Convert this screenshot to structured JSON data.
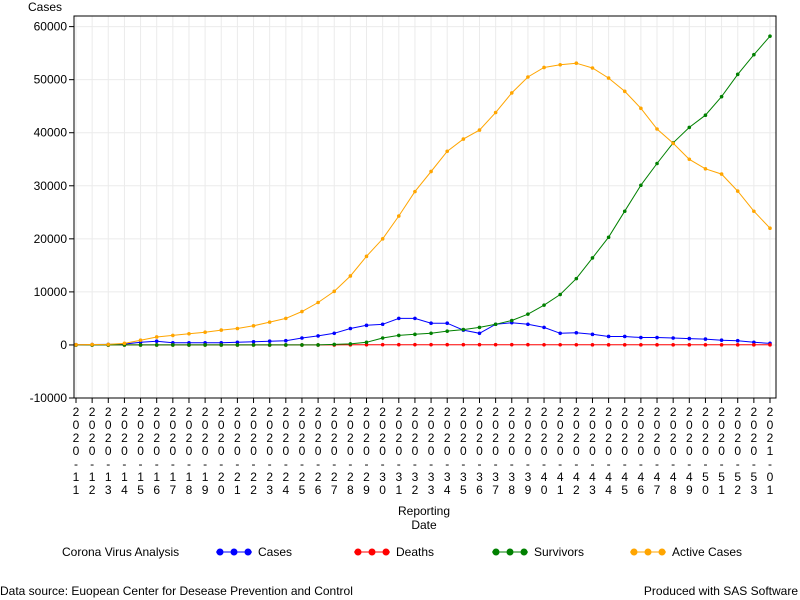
{
  "chart_data": {
    "type": "line",
    "title": "",
    "ylabel": "Cases",
    "xlabel": [
      "Reporting",
      "Date"
    ],
    "ylim": [
      -10000,
      62000
    ],
    "yticks": [
      -10000,
      0,
      10000,
      20000,
      30000,
      40000,
      50000,
      60000
    ],
    "ytick_labels": [
      "-10000",
      "0",
      "10000",
      "20000",
      "30000",
      "40000",
      "50000",
      "60000"
    ],
    "grid": true,
    "legend_position": "bottom",
    "x": [
      "2020-11",
      "2020-12",
      "2020-13",
      "2020-14",
      "2020-15",
      "2020-16",
      "2020-17",
      "2020-18",
      "2020-19",
      "2020-20",
      "2020-21",
      "2020-22",
      "2020-23",
      "2020-24",
      "2020-25",
      "2020-26",
      "2020-27",
      "2020-28",
      "2020-29",
      "2020-30",
      "2020-31",
      "2020-32",
      "2020-33",
      "2020-34",
      "2020-35",
      "2020-36",
      "2020-37",
      "2020-38",
      "2020-39",
      "2020-40",
      "2020-41",
      "2020-42",
      "2020-43",
      "2020-44",
      "2020-45",
      "2020-46",
      "2020-47",
      "2020-48",
      "2020-49",
      "2020-50",
      "2020-51",
      "2020-52",
      "2020-53",
      "2021-01"
    ],
    "series": [
      {
        "name": "Cases",
        "color": "#0000ff",
        "values": [
          50,
          80,
          100,
          150,
          500,
          700,
          400,
          400,
          400,
          400,
          500,
          600,
          700,
          800,
          1300,
          1700,
          2200,
          3100,
          3700,
          3900,
          5000,
          5000,
          4100,
          4100,
          2800,
          2200,
          3900,
          4200,
          3900,
          3300,
          2200,
          2300,
          2000,
          1600,
          1600,
          1400,
          1400,
          1300,
          1200,
          1100,
          900,
          800,
          500,
          300
        ]
      },
      {
        "name": "Deaths",
        "color": "#ff0000",
        "values": [
          0,
          0,
          0,
          0,
          0,
          0,
          0,
          0,
          0,
          0,
          0,
          0,
          0,
          0,
          0,
          0,
          0,
          20,
          30,
          50,
          50,
          50,
          50,
          50,
          50,
          50,
          50,
          50,
          50,
          30,
          30,
          30,
          20,
          20,
          20,
          20,
          20,
          20,
          20,
          20,
          20,
          20,
          20,
          20
        ]
      },
      {
        "name": "Survivors",
        "color": "#008000",
        "values": [
          0,
          0,
          0,
          0,
          0,
          0,
          0,
          0,
          0,
          0,
          0,
          0,
          0,
          0,
          0,
          0,
          100,
          200,
          500,
          1300,
          1800,
          2000,
          2200,
          2600,
          2900,
          3300,
          3900,
          4600,
          5800,
          7500,
          9500,
          12500,
          16400,
          20300,
          25200,
          30100,
          34200,
          38100,
          41000,
          43300,
          46800,
          51000,
          54700,
          58200
        ]
      },
      {
        "name": "Active Cases",
        "color": "#ffa500",
        "values": [
          50,
          80,
          100,
          300,
          900,
          1500,
          1800,
          2100,
          2400,
          2800,
          3100,
          3600,
          4300,
          5000,
          6300,
          8000,
          10100,
          13000,
          16700,
          20000,
          24300,
          28900,
          32700,
          36500,
          38800,
          40500,
          43800,
          47500,
          50500,
          52300,
          52800,
          53100,
          52200,
          50300,
          47800,
          44600,
          40700,
          38000,
          35000,
          33200,
          32200,
          29000,
          25200,
          22000
        ]
      }
    ]
  },
  "legend": {
    "title": "Corona Virus Analysis",
    "items": [
      "Cases",
      "Deaths",
      "Survivors",
      "Active Cases"
    ]
  },
  "footer": {
    "left": "Data source: Euopean Center for Desease Prevention and Control",
    "right": "Produced with SAS Software"
  }
}
